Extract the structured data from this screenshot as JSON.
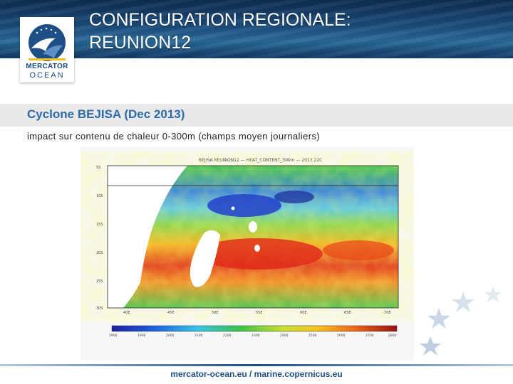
{
  "slide": {
    "title_line1": "CONFIGURATION REGIONALE:",
    "title_line2": "REUNION12",
    "section_heading": "Cyclone BEJISA (Dec 2013)",
    "subtitle": "impact sur contenu de chaleur 0-300m (champs moyen journaliers)"
  },
  "logo": {
    "line1": "MERCATOR",
    "line2": "OCEAN",
    "icon": "mercator-emblem-icon"
  },
  "figure": {
    "title": "BEJISA REUNION12 — HEAT_CONTENT_300m — 2013.22C",
    "yticks": [
      "5S",
      "10S",
      "15S",
      "20S",
      "25S",
      "30S"
    ],
    "xticks": [
      "40E",
      "45E",
      "50E",
      "55E",
      "60E",
      "65E",
      "70E"
    ],
    "colorbar_ticks": [
      "1800",
      "1900",
      "2000",
      "2100",
      "2200",
      "2300",
      "2400",
      "2500",
      "2600",
      "2700",
      "2800"
    ],
    "colors": {
      "low": "#1b1f9e",
      "mid": "#3cc24a",
      "high": "#d41a14",
      "land": "#ffffff"
    }
  },
  "footer": {
    "text": "mercator-ocean.eu / marine.copernicus.eu"
  },
  "theme": {
    "banner": "#1b4d7c",
    "heading": "#2c6aa8",
    "band": "#e9e9e9"
  }
}
